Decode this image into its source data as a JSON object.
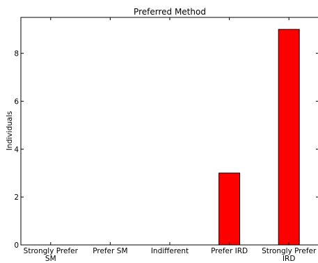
{
  "chart_data": {
    "type": "bar",
    "title": "Preferred Method",
    "xlabel": "",
    "ylabel": "Individuals",
    "categories": [
      [
        "Strongly Prefer",
        "SM"
      ],
      [
        "Prefer SM"
      ],
      [
        "Indifferent"
      ],
      [
        "Prefer IRD"
      ],
      [
        "Strongly Prefer",
        "IRD"
      ]
    ],
    "values": [
      0,
      0,
      0,
      3,
      9
    ],
    "ylim": [
      0,
      9.5
    ],
    "yticks": [
      0,
      2,
      4,
      6,
      8
    ],
    "bar_color": "#ff0000",
    "grid": false,
    "legend": "none"
  }
}
